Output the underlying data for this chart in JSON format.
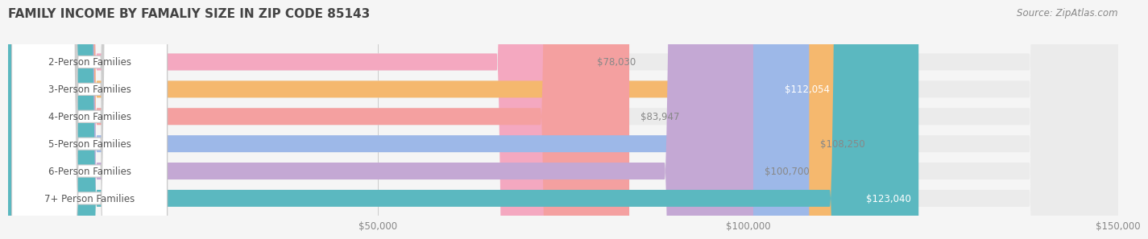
{
  "title": "FAMILY INCOME BY FAMALIY SIZE IN ZIP CODE 85143",
  "source": "Source: ZipAtlas.com",
  "categories": [
    "2-Person Families",
    "3-Person Families",
    "4-Person Families",
    "5-Person Families",
    "6-Person Families",
    "7+ Person Families"
  ],
  "values": [
    78030,
    112054,
    83947,
    108250,
    100700,
    123040
  ],
  "bar_colors": [
    "#F4A8C0",
    "#F5B86E",
    "#F4A0A0",
    "#9DB8E8",
    "#C4A8D4",
    "#5BB8C0"
  ],
  "label_colors": [
    "#888888",
    "#ffffff",
    "#888888",
    "#888888",
    "#888888",
    "#ffffff"
  ],
  "label_formats": [
    "$78,030",
    "$112,054",
    "$83,947",
    "$108,250",
    "$100,700",
    "$123,040"
  ],
  "xlim": [
    0,
    150000
  ],
  "xticks": [
    0,
    50000,
    100000,
    150000
  ],
  "xtick_labels": [
    "",
    "$50,000",
    "$100,000",
    "$150,000"
  ],
  "background_color": "#f5f5f5",
  "bar_background_color": "#ebebeb",
  "title_color": "#444444",
  "title_fontsize": 11,
  "source_color": "#888888",
  "source_fontsize": 8.5,
  "bar_height": 0.62,
  "label_fontsize": 8.5,
  "category_fontsize": 8.5,
  "category_color": "#555555"
}
